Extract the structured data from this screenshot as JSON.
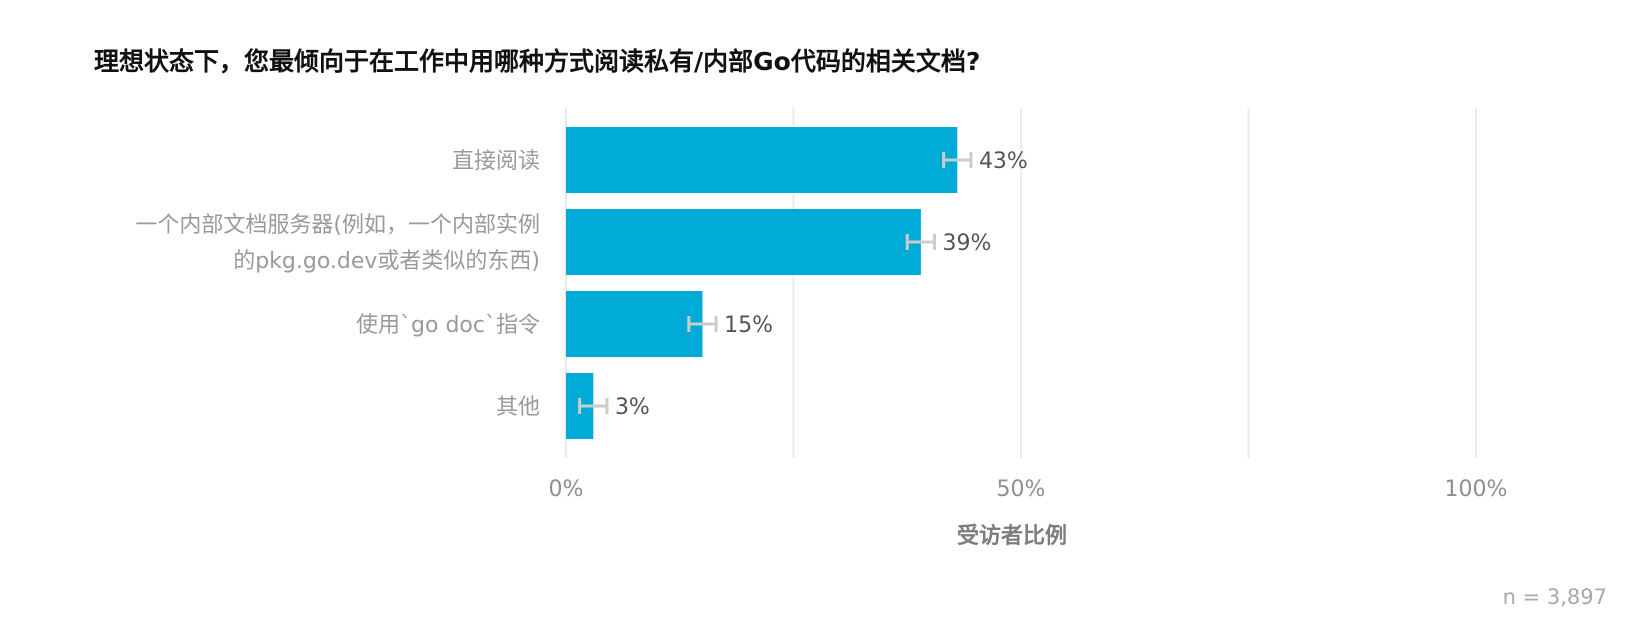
{
  "chart_data": {
    "type": "bar",
    "orientation": "horizontal",
    "title": "理想状态下，您最倾向于在工作中用哪种方式阅读私有/内部Go代码的相关文档?",
    "xlabel": "受访者比例",
    "categories": [
      [
        "直接阅读"
      ],
      [
        "一个内部文档服务器(例如，一个内部实例",
        "的pkg.go.dev或者类似的东西)"
      ],
      [
        "使用`go doc`指令"
      ],
      [
        "其他"
      ]
    ],
    "values": [
      43,
      39,
      15,
      3
    ],
    "value_labels": [
      "43%",
      "39%",
      "15%",
      "3%"
    ],
    "error_margin": 1.5,
    "xlim": [
      0,
      100
    ],
    "ticks": [
      0,
      50,
      100
    ],
    "tick_labels": [
      "0%",
      "50%",
      "100%"
    ],
    "gridlines": [
      0,
      25,
      50,
      75,
      100
    ],
    "grid": true,
    "legend": false,
    "bar_color": "#00acd7",
    "errorbar_color": "#cccccc",
    "note": "n =  3,897"
  }
}
